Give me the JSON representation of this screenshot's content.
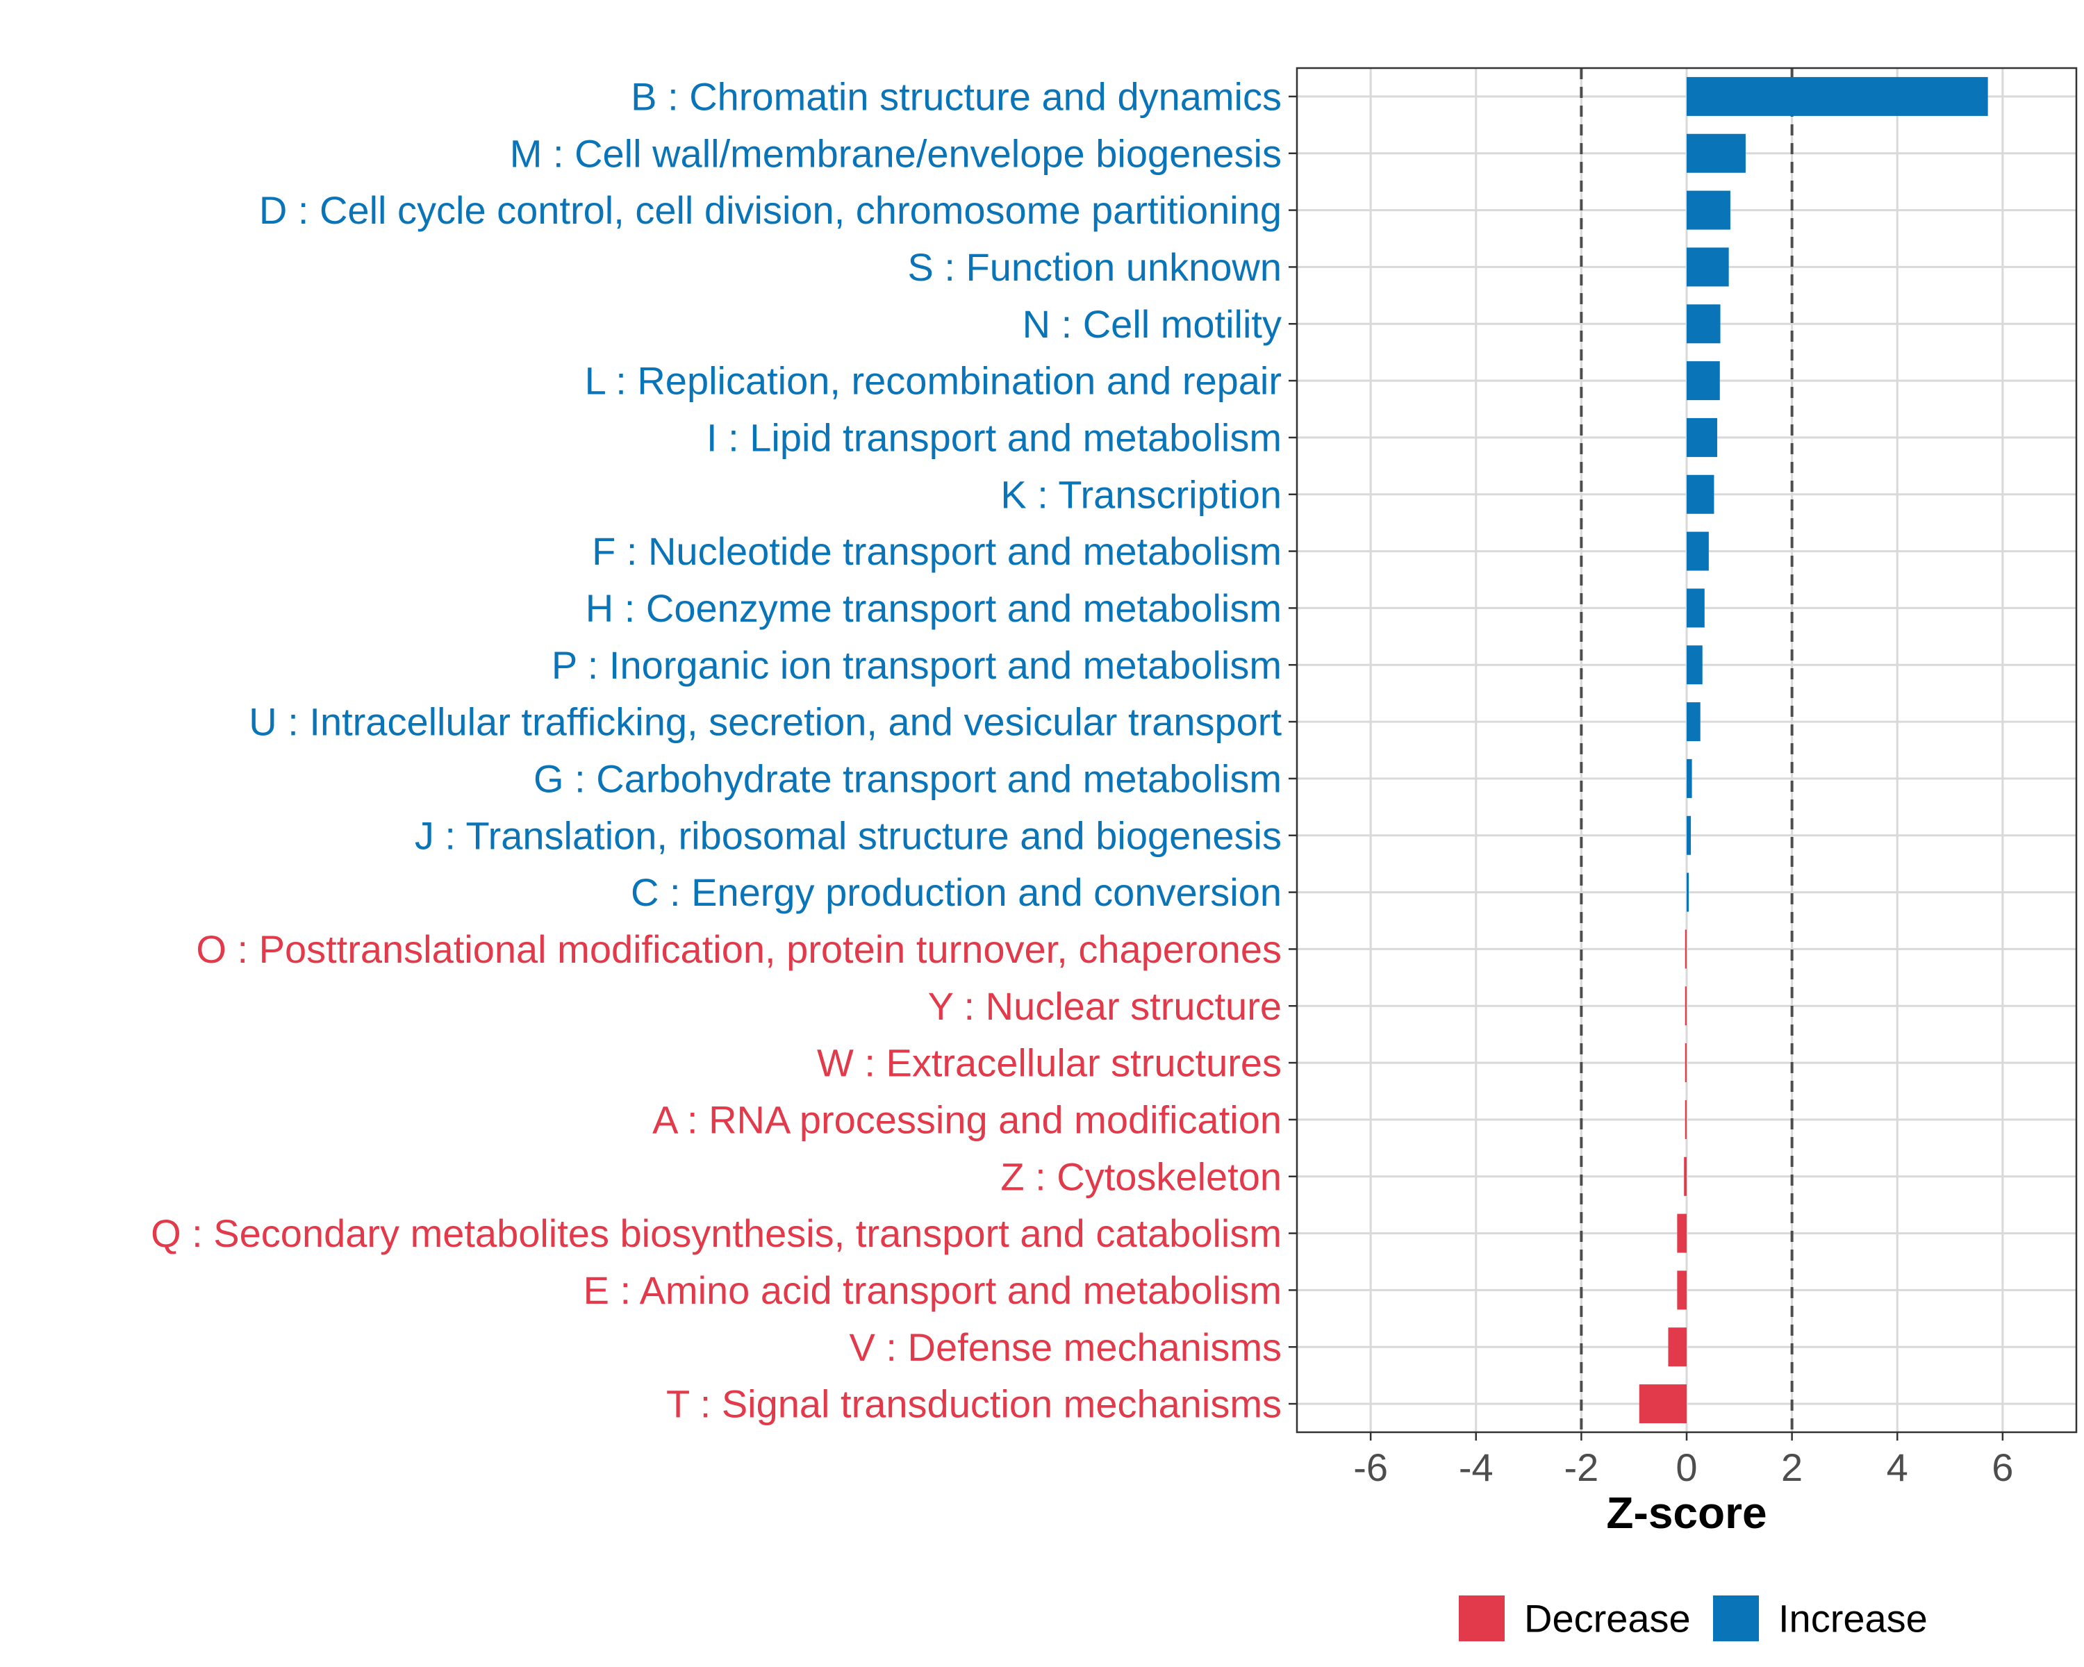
{
  "colors": {
    "increase": "#0a74b8",
    "decrease": "#e23a4a",
    "grid": "#d9d9d9",
    "ref_line": "#4d4d4d",
    "axis_text": "#4d4d4d"
  },
  "chart_data": {
    "type": "bar",
    "orientation": "horizontal",
    "xlabel": "Z-score",
    "xlim": [
      -7.4,
      7.4
    ],
    "x_ticks": [
      -6,
      -4,
      -2,
      0,
      2,
      4,
      6
    ],
    "x_tick_labels": [
      "-6",
      "-4",
      "-2",
      "0",
      "2",
      "4",
      "6"
    ],
    "reference_lines": [
      -2,
      2
    ],
    "grid": true,
    "legend": {
      "position": "bottom",
      "entries": [
        {
          "label": "Decrease",
          "group": "decrease"
        },
        {
          "label": "Increase",
          "group": "increase"
        }
      ]
    },
    "categories": [
      "B : Chromatin structure and dynamics",
      "M : Cell wall/membrane/envelope biogenesis",
      "D : Cell cycle control, cell division, chromosome partitioning",
      "S : Function unknown",
      "N : Cell motility",
      "L : Replication, recombination and repair",
      "I : Lipid transport and metabolism",
      "K : Transcription",
      "F : Nucleotide transport and metabolism",
      "H : Coenzyme transport and metabolism",
      "P : Inorganic ion transport and metabolism",
      "U : Intracellular trafficking, secretion, and vesicular transport",
      "G : Carbohydrate transport and metabolism",
      "J : Translation, ribosomal structure and biogenesis",
      "C : Energy production and conversion",
      "O : Posttranslational modification, protein turnover, chaperones",
      "Y : Nuclear structure",
      "W : Extracellular structures",
      "A : RNA processing and modification",
      "Z : Cytoskeleton",
      "Q : Secondary metabolites biosynthesis, transport and catabolism",
      "E : Amino acid transport and metabolism",
      "V : Defense mechanisms",
      "T : Signal transduction mechanisms"
    ],
    "values": [
      5.72,
      1.12,
      0.83,
      0.8,
      0.64,
      0.63,
      0.58,
      0.52,
      0.42,
      0.34,
      0.3,
      0.26,
      0.1,
      0.08,
      0.04,
      -0.03,
      -0.03,
      -0.03,
      -0.03,
      -0.05,
      -0.18,
      -0.18,
      -0.35,
      -0.9
    ],
    "groups": [
      "increase",
      "increase",
      "increase",
      "increase",
      "increase",
      "increase",
      "increase",
      "increase",
      "increase",
      "increase",
      "increase",
      "increase",
      "increase",
      "increase",
      "increase",
      "decrease",
      "decrease",
      "decrease",
      "decrease",
      "decrease",
      "decrease",
      "decrease",
      "decrease",
      "decrease"
    ]
  }
}
